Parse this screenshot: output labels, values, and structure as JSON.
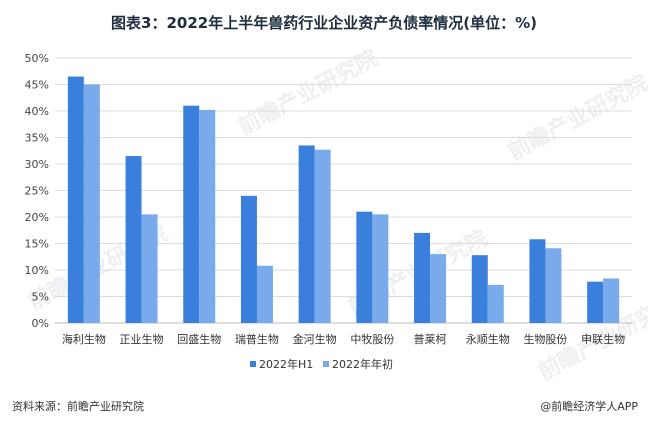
{
  "title": "图表3：2022年上半年兽药行业企业资产负债率情况(单位：%)",
  "footer": {
    "source": "资料来源：前瞻产业研究院",
    "brand": "@前瞻经济学人APP"
  },
  "watermark": "前瞻产业研究院",
  "colors": {
    "h1": "#3b7fdc",
    "begin": "#79aaeb",
    "grid": "#dcdcdc",
    "axis": "#bfbfbf"
  },
  "chart_data": {
    "type": "bar",
    "categories": [
      "海利生物",
      "正业生物",
      "回盛生物",
      "瑞普生物",
      "金河生物",
      "中牧股份",
      "普莱柯",
      "永顺生物",
      "生物股份",
      "申联生物"
    ],
    "series": [
      {
        "name": "2022年H1",
        "values": [
          46.5,
          31.5,
          41.0,
          24.0,
          33.5,
          21.0,
          17.0,
          12.8,
          15.8,
          7.8
        ]
      },
      {
        "name": "2022年年初",
        "values": [
          45.0,
          20.5,
          40.2,
          10.8,
          32.7,
          20.5,
          13.0,
          7.2,
          14.1,
          8.4
        ]
      }
    ],
    "y_ticks": [
      "0%",
      "5%",
      "10%",
      "15%",
      "20%",
      "25%",
      "30%",
      "35%",
      "40%",
      "45%",
      "50%"
    ],
    "ylim": [
      0,
      50
    ],
    "grid": true,
    "legend_position": "bottom"
  }
}
